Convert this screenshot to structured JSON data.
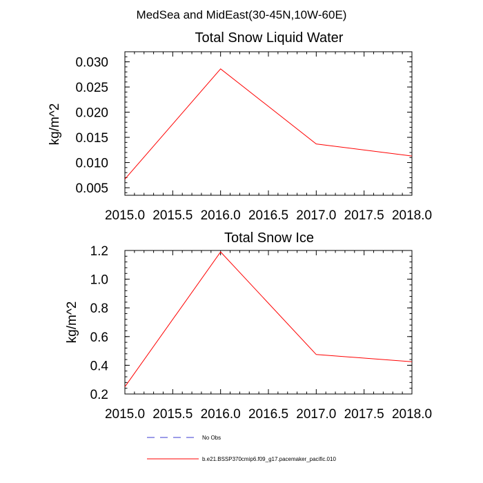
{
  "suptitle": "MedSea and MidEast(30-45N,10W-60E)",
  "panels": [
    {
      "title": "Total Snow Liquid Water",
      "ylabel": "kg/m^2"
    },
    {
      "title": "Total Snow Ice",
      "ylabel": "kg/m^2"
    }
  ],
  "legend": [
    {
      "label": "No Obs",
      "color": "#3a3ad0",
      "style": "dashed"
    },
    {
      "label": "b.e21.BSSP370cmip6.f09_g17.pacemaker_pacific.010",
      "color": "#ff0000",
      "style": "solid"
    }
  ],
  "chart_data": [
    {
      "type": "line",
      "title": "Total Snow Liquid Water",
      "xlabel": "",
      "ylabel": "kg/m^2",
      "xlim": [
        2015.0,
        2018.0
      ],
      "ylim": [
        0.0035,
        0.032
      ],
      "xticks": [
        "2015.0",
        "2015.5",
        "2016.0",
        "2016.5",
        "2017.0",
        "2017.5",
        "2018.0"
      ],
      "yticks": [
        "0.005",
        "0.010",
        "0.015",
        "0.020",
        "0.025",
        "0.030"
      ],
      "series": [
        {
          "name": "b.e21.BSSP370cmip6.f09_g17.pacemaker_pacific.010",
          "color": "#ff0000",
          "x": [
            2015.0,
            2016.0,
            2017.0,
            2018.0
          ],
          "y": [
            0.0067,
            0.0286,
            0.0137,
            0.0113
          ]
        }
      ]
    },
    {
      "type": "line",
      "title": "Total Snow Ice",
      "xlabel": "",
      "ylabel": "kg/m^2",
      "xlim": [
        2015.0,
        2018.0
      ],
      "ylim": [
        0.2,
        1.2
      ],
      "xticks": [
        "2015.0",
        "2015.5",
        "2016.0",
        "2016.5",
        "2017.0",
        "2017.5",
        "2018.0"
      ],
      "yticks": [
        "0.2",
        "0.4",
        "0.6",
        "0.8",
        "1.0",
        "1.2"
      ],
      "series": [
        {
          "name": "b.e21.BSSP370cmip6.f09_g17.pacemaker_pacific.010",
          "color": "#ff0000",
          "x": [
            2015.0,
            2016.0,
            2017.0,
            2018.0
          ],
          "y": [
            0.25,
            1.19,
            0.475,
            0.425
          ]
        }
      ]
    }
  ]
}
